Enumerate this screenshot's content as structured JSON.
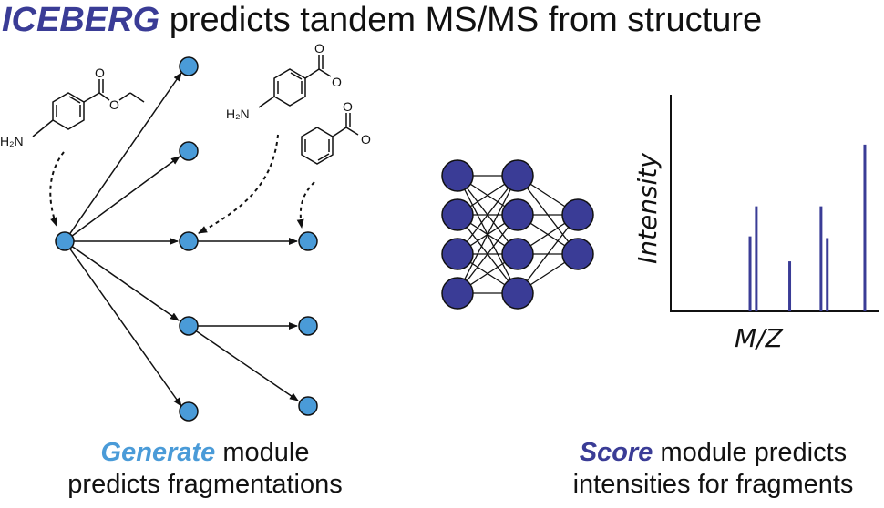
{
  "title": {
    "brand": "ICEBERG",
    "rest": " predicts tandem MS/MS from structure"
  },
  "colors": {
    "brand": "#3a3c96",
    "fragment_node": "#4a9bd8",
    "network_node": "#3a3c96",
    "spectrum_peak": "#3a3c96",
    "edge": "#111111"
  },
  "molecules": {
    "precursor": {
      "amine_label": "H₂N",
      "o_carbonyl": "O",
      "o_ester": "O"
    },
    "fragment_1": {
      "amine_label": "H₂N",
      "o_carbonyl": "O",
      "o_hydroxyl": "O"
    },
    "fragment_2": {
      "o_carbonyl": "O",
      "o_hydroxyl": "O"
    }
  },
  "spectrum": {
    "ylabel": "Intensity",
    "xlabel": "M/Z"
  },
  "chart_data": {
    "type": "bar",
    "xlabel": "M/Z",
    "ylabel": "Intensity",
    "x": [
      0.38,
      0.41,
      0.57,
      0.72,
      0.75,
      0.93
    ],
    "values": [
      0.45,
      0.63,
      0.3,
      0.63,
      0.44,
      1.0
    ],
    "xlim": [
      0,
      1
    ],
    "ylim": [
      0,
      1.3
    ]
  },
  "captions": {
    "left_highlight": "Generate",
    "left_line1_rest": " module",
    "left_line2": "predicts fragmentations",
    "right_highlight": "Score",
    "right_line1_rest": " module predicts",
    "right_line2": "intensities for fragments"
  }
}
